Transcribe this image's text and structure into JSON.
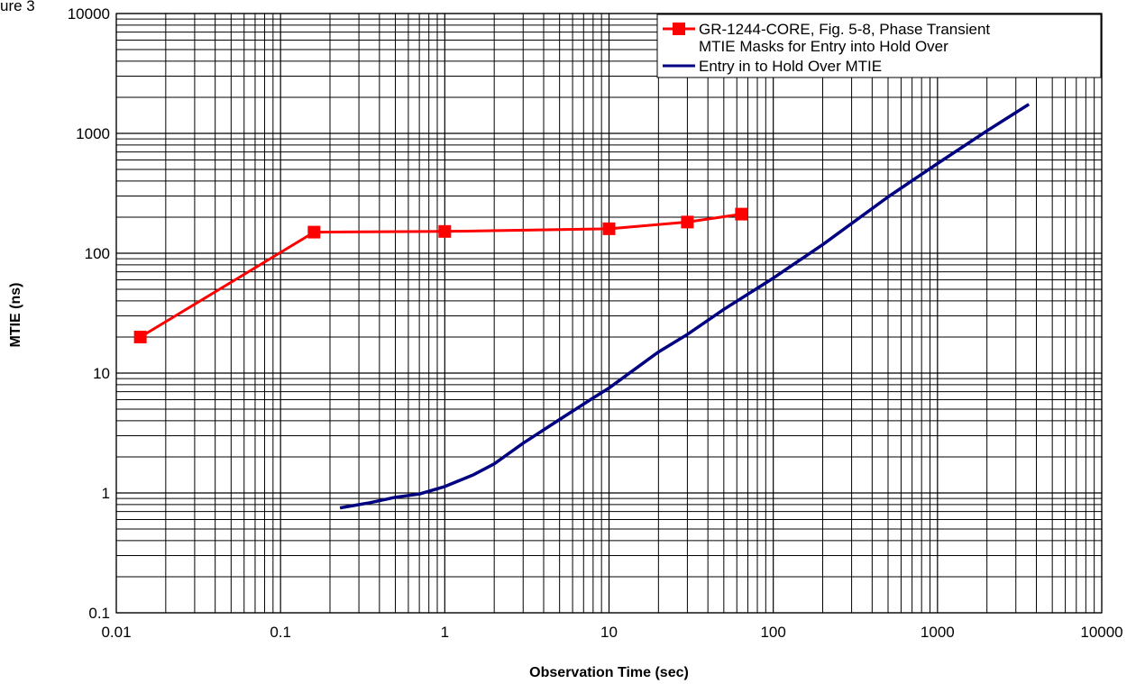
{
  "figure_label_fragment": "ure 3",
  "chart_data": {
    "type": "line",
    "xscale": "log",
    "yscale": "log",
    "xlim": [
      0.01,
      10000
    ],
    "ylim": [
      0.1,
      10000
    ],
    "grid": true,
    "xlabel": "Observation Time (sec)",
    "ylabel": "MTIE (ns)",
    "xtick_labels": [
      "0.01",
      "0.1",
      "1",
      "10",
      "100",
      "1000",
      "10000"
    ],
    "ytick_labels": [
      "0.1",
      "1",
      "10",
      "100",
      "1000",
      "10000"
    ],
    "legend_position": "top-right",
    "series": [
      {
        "name": "GR-1244-CORE, Fig. 5-8, Phase Transient MTIE Masks for Entry into Hold Over",
        "legend_lines": [
          "GR-1244-CORE, Fig. 5-8, Phase Transient",
          "MTIE Masks for Entry into Hold Over"
        ],
        "color": "#ff0000",
        "marker": "square",
        "x": [
          0.014,
          0.16,
          1,
          10,
          30,
          64
        ],
        "y": [
          20,
          150,
          152,
          160,
          182,
          212
        ]
      },
      {
        "name": "Entry in to Hold Over MTIE",
        "legend_lines": [
          "Entry in to Hold Over MTIE"
        ],
        "color": "#000080",
        "marker": "none",
        "x": [
          0.23,
          0.35,
          0.5,
          0.7,
          1,
          1.5,
          2,
          3,
          5,
          8,
          10,
          20,
          30,
          50,
          100,
          200,
          500,
          1000,
          2000,
          3600
        ],
        "y": [
          0.75,
          0.83,
          0.92,
          0.98,
          1.13,
          1.42,
          1.75,
          2.6,
          4.1,
          6.2,
          7.5,
          15,
          21,
          34,
          62,
          118,
          295,
          560,
          1050,
          1750
        ]
      }
    ]
  }
}
